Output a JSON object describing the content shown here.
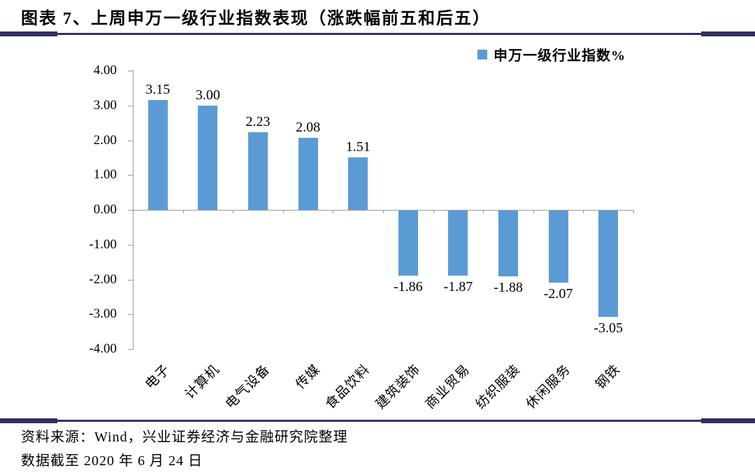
{
  "figure": {
    "title": "图表 7、上周申万一级行业指数表现（涨跌幅前五和后五）",
    "source_line1": "资料来源：Wind，兴业证券经济与金融研究院整理",
    "source_line2": "数据截至 2020 年 6 月 24 日"
  },
  "legend": {
    "label": "申万一级行业指数%"
  },
  "colors": {
    "bar": "#5B9BD5",
    "rule": "#31305F",
    "axis": "#9a9a9a",
    "text": "#000000"
  },
  "chart_data": {
    "type": "bar",
    "title": "",
    "series_name": "申万一级行业指数%",
    "categories": [
      "电子",
      "计算机",
      "电气设备",
      "传媒",
      "食品饮料",
      "建筑装饰",
      "商业贸易",
      "纺织服装",
      "休闲服务",
      "钢铁"
    ],
    "values": [
      3.15,
      3.0,
      2.23,
      2.08,
      1.51,
      -1.86,
      -1.87,
      -1.88,
      -2.07,
      -3.05
    ],
    "data_labels": [
      "3.15",
      "3.00",
      "2.23",
      "2.08",
      "1.51",
      "-1.86",
      "-1.87",
      "-1.88",
      "-2.07",
      "-3.05"
    ],
    "ylim": [
      -4.0,
      4.0
    ],
    "ytick_labels": [
      "4.00",
      "3.00",
      "2.00",
      "1.00",
      "0.00",
      "-1.00",
      "-2.00",
      "-3.00",
      "-4.00"
    ],
    "grid": false,
    "legend_position": "top-right",
    "data_labels_shown": true
  }
}
